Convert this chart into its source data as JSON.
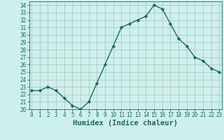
{
  "x": [
    0,
    1,
    2,
    3,
    4,
    5,
    6,
    7,
    8,
    9,
    10,
    11,
    12,
    13,
    14,
    15,
    16,
    17,
    18,
    19,
    20,
    21,
    22,
    23
  ],
  "y": [
    22.5,
    22.5,
    23.0,
    22.5,
    21.5,
    20.5,
    20.0,
    21.0,
    23.5,
    26.0,
    28.5,
    31.0,
    31.5,
    32.0,
    32.5,
    34.0,
    33.5,
    31.5,
    29.5,
    28.5,
    27.0,
    26.5,
    25.5,
    25.0
  ],
  "xlabel": "Humidex (Indice chaleur)",
  "ylim": [
    20,
    34.5
  ],
  "xlim": [
    -0.3,
    23.3
  ],
  "yticks": [
    20,
    21,
    22,
    23,
    24,
    25,
    26,
    27,
    28,
    29,
    30,
    31,
    32,
    33,
    34
  ],
  "xticks": [
    0,
    1,
    2,
    3,
    4,
    5,
    6,
    7,
    8,
    9,
    10,
    11,
    12,
    13,
    14,
    15,
    16,
    17,
    18,
    19,
    20,
    21,
    22,
    23
  ],
  "line_color": "#1a6b5a",
  "marker": "D",
  "marker_size": 2.2,
  "bg_color": "#cef0ec",
  "grid_color": "#aabfbb",
  "axis_color": "#1a6b5a",
  "tick_label_color": "#1a6b5a",
  "xlabel_color": "#1a6b5a",
  "xlabel_fontsize": 7.5,
  "tick_fontsize": 5.5,
  "line_width": 1.0
}
